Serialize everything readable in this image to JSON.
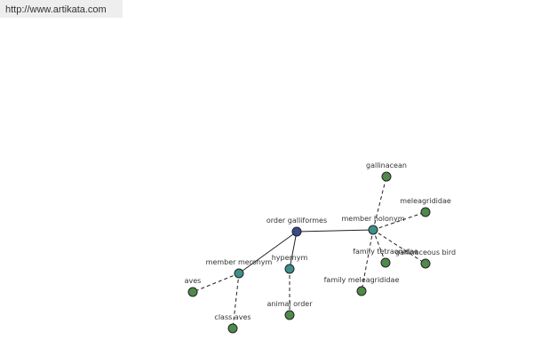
{
  "header": {
    "url": "http://www.artikata.com"
  },
  "nodes": [
    {
      "label": "order galliformes"
    },
    {
      "label": "member holonym"
    },
    {
      "label": "member meronym"
    },
    {
      "label": "hypernym"
    },
    {
      "label": "gallinacean"
    },
    {
      "label": "meleagrididae"
    },
    {
      "label": "family tetraonidae"
    },
    {
      "label": "gallinaceous bird"
    },
    {
      "label": "family meleagrididae"
    },
    {
      "label": "aves"
    },
    {
      "label": "class aves"
    },
    {
      "label": "animal order"
    }
  ]
}
